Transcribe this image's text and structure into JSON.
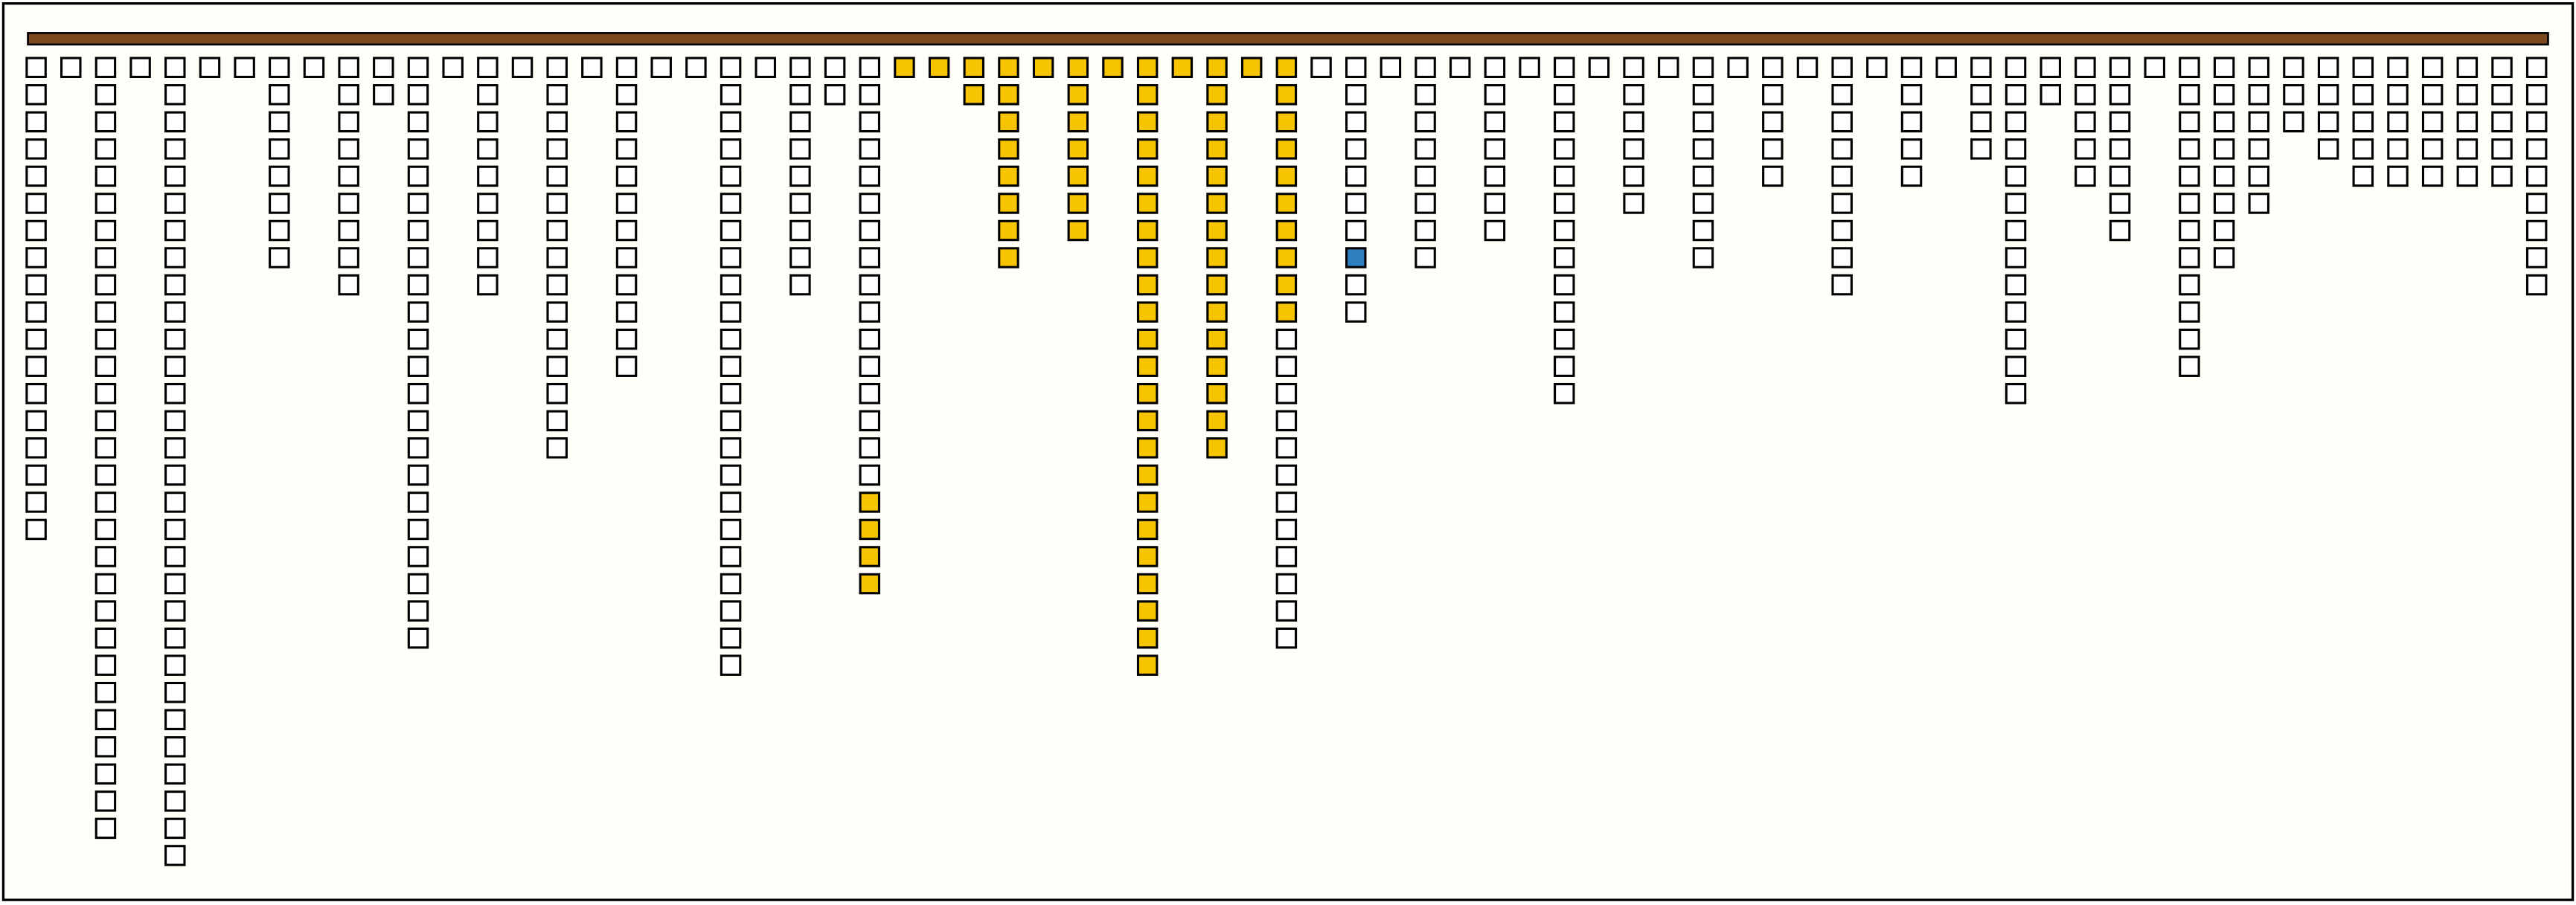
{
  "board": {
    "background": "#fffef8",
    "bar_color": "#7a4a1e",
    "columns": [
      {
        "runs": [
          {
            "color": "#ffffff",
            "count": 18
          }
        ]
      },
      {
        "runs": [
          {
            "color": "#ffffff",
            "count": 1
          }
        ]
      },
      {
        "runs": [
          {
            "color": "#ffffff",
            "count": 29
          }
        ]
      },
      {
        "runs": [
          {
            "color": "#ffffff",
            "count": 1
          }
        ]
      },
      {
        "runs": [
          {
            "color": "#ffffff",
            "count": 30
          }
        ]
      },
      {
        "runs": [
          {
            "color": "#ffffff",
            "count": 1
          }
        ]
      },
      {
        "runs": [
          {
            "color": "#ffffff",
            "count": 1
          }
        ]
      },
      {
        "runs": [
          {
            "color": "#ffffff",
            "count": 8
          }
        ]
      },
      {
        "runs": [
          {
            "color": "#ffffff",
            "count": 1
          }
        ]
      },
      {
        "runs": [
          {
            "color": "#ffffff",
            "count": 9
          }
        ]
      },
      {
        "runs": [
          {
            "color": "#ffffff",
            "count": 2
          }
        ]
      },
      {
        "runs": [
          {
            "color": "#ffffff",
            "count": 22
          }
        ]
      },
      {
        "runs": [
          {
            "color": "#ffffff",
            "count": 1
          }
        ]
      },
      {
        "runs": [
          {
            "color": "#ffffff",
            "count": 9
          }
        ]
      },
      {
        "runs": [
          {
            "color": "#ffffff",
            "count": 1
          }
        ]
      },
      {
        "runs": [
          {
            "color": "#ffffff",
            "count": 15
          }
        ]
      },
      {
        "runs": [
          {
            "color": "#ffffff",
            "count": 1
          }
        ]
      },
      {
        "runs": [
          {
            "color": "#ffffff",
            "count": 12
          }
        ]
      },
      {
        "runs": [
          {
            "color": "#ffffff",
            "count": 1
          }
        ]
      },
      {
        "runs": [
          {
            "color": "#ffffff",
            "count": 1
          }
        ]
      },
      {
        "runs": [
          {
            "color": "#ffffff",
            "count": 23
          }
        ]
      },
      {
        "runs": [
          {
            "color": "#ffffff",
            "count": 1
          }
        ]
      },
      {
        "runs": [
          {
            "color": "#ffffff",
            "count": 9
          }
        ]
      },
      {
        "runs": [
          {
            "color": "#ffffff",
            "count": 2
          }
        ]
      },
      {
        "runs": [
          {
            "color": "#ffffff",
            "count": 16
          },
          {
            "color": "#f6c400",
            "count": 4
          }
        ]
      },
      {
        "runs": [
          {
            "color": "#f6c400",
            "count": 1
          }
        ]
      },
      {
        "runs": [
          {
            "color": "#f6c400",
            "count": 1
          }
        ]
      },
      {
        "runs": [
          {
            "color": "#f6c400",
            "count": 2
          }
        ]
      },
      {
        "runs": [
          {
            "color": "#f6c400",
            "count": 8
          }
        ]
      },
      {
        "runs": [
          {
            "color": "#f6c400",
            "count": 1
          }
        ]
      },
      {
        "runs": [
          {
            "color": "#f6c400",
            "count": 7
          }
        ]
      },
      {
        "runs": [
          {
            "color": "#f6c400",
            "count": 1
          }
        ]
      },
      {
        "runs": [
          {
            "color": "#f6c400",
            "count": 23
          }
        ]
      },
      {
        "runs": [
          {
            "color": "#f6c400",
            "count": 1
          }
        ]
      },
      {
        "runs": [
          {
            "color": "#f6c400",
            "count": 15
          }
        ]
      },
      {
        "runs": [
          {
            "color": "#f6c400",
            "count": 1
          }
        ]
      },
      {
        "runs": [
          {
            "color": "#f6c400",
            "count": 10
          },
          {
            "color": "#ffffff",
            "count": 12
          }
        ]
      },
      {
        "runs": [
          {
            "color": "#ffffff",
            "count": 1
          }
        ]
      },
      {
        "runs": [
          {
            "color": "#ffffff",
            "count": 7
          },
          {
            "color": "#2e7fc0",
            "count": 1
          },
          {
            "color": "#ffffff",
            "count": 2
          }
        ]
      },
      {
        "runs": [
          {
            "color": "#ffffff",
            "count": 1
          }
        ]
      },
      {
        "runs": [
          {
            "color": "#ffffff",
            "count": 8
          }
        ]
      },
      {
        "runs": [
          {
            "color": "#ffffff",
            "count": 1
          }
        ]
      },
      {
        "runs": [
          {
            "color": "#ffffff",
            "count": 7
          }
        ]
      },
      {
        "runs": [
          {
            "color": "#ffffff",
            "count": 1
          }
        ]
      },
      {
        "runs": [
          {
            "color": "#ffffff",
            "count": 13
          }
        ]
      },
      {
        "runs": [
          {
            "color": "#ffffff",
            "count": 1
          }
        ]
      },
      {
        "runs": [
          {
            "color": "#ffffff",
            "count": 6
          }
        ]
      },
      {
        "runs": [
          {
            "color": "#ffffff",
            "count": 1
          }
        ]
      },
      {
        "runs": [
          {
            "color": "#ffffff",
            "count": 8
          }
        ]
      },
      {
        "runs": [
          {
            "color": "#ffffff",
            "count": 1
          }
        ]
      },
      {
        "runs": [
          {
            "color": "#ffffff",
            "count": 5
          }
        ]
      },
      {
        "runs": [
          {
            "color": "#ffffff",
            "count": 1
          }
        ]
      },
      {
        "runs": [
          {
            "color": "#ffffff",
            "count": 9
          }
        ]
      },
      {
        "runs": [
          {
            "color": "#ffffff",
            "count": 1
          }
        ]
      },
      {
        "runs": [
          {
            "color": "#ffffff",
            "count": 5
          }
        ]
      },
      {
        "runs": [
          {
            "color": "#ffffff",
            "count": 1
          }
        ]
      },
      {
        "runs": [
          {
            "color": "#ffffff",
            "count": 4
          }
        ]
      },
      {
        "runs": [
          {
            "color": "#ffffff",
            "count": 13
          }
        ]
      },
      {
        "runs": [
          {
            "color": "#ffffff",
            "count": 2
          }
        ]
      },
      {
        "runs": [
          {
            "color": "#ffffff",
            "count": 5
          }
        ]
      },
      {
        "runs": [
          {
            "color": "#ffffff",
            "count": 7
          }
        ]
      },
      {
        "runs": [
          {
            "color": "#ffffff",
            "count": 1
          }
        ]
      },
      {
        "runs": [
          {
            "color": "#ffffff",
            "count": 12
          }
        ]
      },
      {
        "runs": [
          {
            "color": "#ffffff",
            "count": 8
          }
        ]
      },
      {
        "runs": [
          {
            "color": "#ffffff",
            "count": 6
          }
        ]
      },
      {
        "runs": [
          {
            "color": "#ffffff",
            "count": 3
          }
        ]
      },
      {
        "runs": [
          {
            "color": "#ffffff",
            "count": 4
          }
        ]
      },
      {
        "runs": [
          {
            "color": "#ffffff",
            "count": 5
          }
        ]
      },
      {
        "runs": [
          {
            "color": "#ffffff",
            "count": 5
          }
        ]
      },
      {
        "runs": [
          {
            "color": "#ffffff",
            "count": 5
          }
        ]
      },
      {
        "runs": [
          {
            "color": "#ffffff",
            "count": 5
          }
        ]
      },
      {
        "runs": [
          {
            "color": "#ffffff",
            "count": 5
          }
        ]
      },
      {
        "runs": [
          {
            "color": "#ffffff",
            "count": 9
          }
        ]
      }
    ]
  }
}
